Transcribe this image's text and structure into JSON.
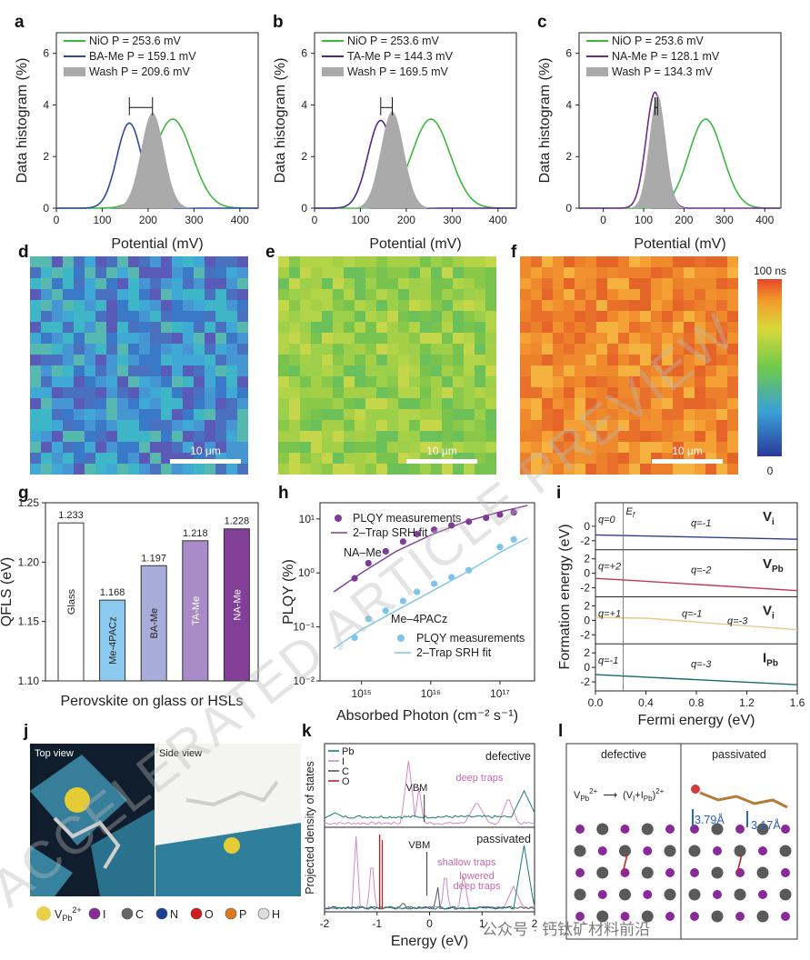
{
  "watermark": "ACCELERATED ARTICLE PREVIEW",
  "footer": "公众号 · 钙钛矿材料前沿",
  "kpfm": {
    "ylabel": "Data histogram (%)",
    "xlabel": "Potential (mV)",
    "panels": [
      {
        "label": "a",
        "series": [
          {
            "name": "NiO P = 253.6 mV",
            "type": "line",
            "color": "#3db83d",
            "mean": 253.6,
            "sigma": 42,
            "peak": 3.45
          },
          {
            "name": "BA-Me P = 159.1 mV",
            "type": "line",
            "color": "#2b4aa0",
            "mean": 159.1,
            "sigma": 27,
            "peak": 3.3
          },
          {
            "name": "Wash P = 209.6 mV",
            "type": "fill",
            "color": "#aaaaaa",
            "mean": 209.6,
            "sigma": 25,
            "peak": 3.7
          }
        ],
        "xticks": [
          "0",
          "100",
          "200",
          "300",
          "400"
        ]
      },
      {
        "label": "b",
        "series": [
          {
            "name": "NiO P = 253.6 mV",
            "type": "line",
            "color": "#3db83d",
            "mean": 253.6,
            "sigma": 42,
            "peak": 3.45
          },
          {
            "name": "TA-Me P = 144.3 mV",
            "type": "line",
            "color": "#4a2a8c",
            "mean": 144.3,
            "sigma": 28,
            "peak": 3.4
          },
          {
            "name": "Wash P = 169.5 mV",
            "type": "fill",
            "color": "#aaaaaa",
            "mean": 169.5,
            "sigma": 25,
            "peak": 3.75
          }
        ],
        "xticks": [
          "0",
          "100",
          "200",
          "300",
          "400"
        ]
      },
      {
        "label": "c",
        "series": [
          {
            "name": "NiO P = 253.6 mV",
            "type": "line",
            "color": "#3db83d",
            "mean": 253.6,
            "sigma": 42,
            "peak": 3.45
          },
          {
            "name": "NA-Me P = 128.1 mV",
            "type": "line",
            "color": "#6e2d8c",
            "mean": 128.1,
            "sigma": 22,
            "peak": 4.5
          },
          {
            "name": "Wash P = 134.3 mV",
            "type": "fill",
            "color": "#aaaaaa",
            "mean": 134.3,
            "sigma": 20,
            "peak": 4.4
          }
        ],
        "xticks": [
          "0",
          "100",
          "200",
          "300",
          "400"
        ]
      }
    ],
    "yticks": [
      "0",
      "2",
      "4",
      "6"
    ]
  },
  "maps": {
    "labels": [
      "d",
      "e",
      "f"
    ],
    "scalebar": "10 μm",
    "colorbar_top": "100 ns",
    "colorbar_bottom": "0"
  },
  "chart_data": [
    {
      "type": "bar",
      "panel": "g",
      "title": "",
      "xlabel": "Perovskite on glass or HSLs",
      "ylabel": "QFLS (eV)",
      "ylim": [
        1.1,
        1.25
      ],
      "yticks": [
        "1.10",
        "1.15",
        "1.20",
        "1.25"
      ],
      "categories": [
        "Glass",
        "Me-4PACz",
        "BA-Me",
        "TA-Me",
        "NA-Me"
      ],
      "values": [
        1.233,
        1.168,
        1.197,
        1.218,
        1.228
      ],
      "value_labels": [
        "1.233",
        "1.168",
        "1.197",
        "1.218",
        "1.228"
      ],
      "colors": [
        "#ffffff",
        "#8ccbef",
        "#a8acd8",
        "#a98bc8",
        "#833e98"
      ],
      "text_colors": [
        "#222",
        "#222",
        "#222",
        "#ffffff",
        "#ffffff"
      ]
    },
    {
      "type": "scatter",
      "panel": "h",
      "xlabel": "Absorbed Photon (cm⁻² s⁻¹)",
      "ylabel": "PLQY (%)",
      "xlim_log10": [
        14.4,
        17.5
      ],
      "ylim_log10": [
        -2,
        1.3
      ],
      "xticks": [
        "10¹⁵",
        "10¹⁶",
        "10¹⁷"
      ],
      "yticks": [
        "10⁻²",
        "10⁻¹",
        "10⁰",
        "10¹"
      ],
      "series": [
        {
          "name": "PLQY measurements",
          "group": "NA-Me",
          "color": "#7d3c98",
          "x": [
            14.9,
            15.1,
            15.35,
            15.6,
            15.8,
            16.05,
            16.3,
            16.55,
            16.8,
            17.0,
            17.2
          ],
          "y": [
            -0.1,
            0.18,
            0.4,
            0.58,
            0.72,
            0.8,
            0.88,
            0.95,
            1.02,
            1.08,
            1.12
          ]
        },
        {
          "name": "PLQY measurements",
          "group": "Me-4PACz",
          "color": "#7cc4ea",
          "x": [
            14.9,
            15.1,
            15.35,
            15.6,
            15.8,
            16.05,
            16.3,
            16.55,
            17.0,
            17.2
          ],
          "y": [
            -1.2,
            -0.85,
            -0.7,
            -0.52,
            -0.35,
            -0.2,
            -0.08,
            0.05,
            0.48,
            0.62
          ]
        }
      ],
      "legend": {
        "measure": "PLQY measurements",
        "fit": "2–Trap SRH fit",
        "label_top": "NA–Me",
        "label_bottom": "Me–4PACz"
      }
    },
    {
      "type": "line",
      "panel": "i",
      "xlabel": "Fermi energy (eV)",
      "ylabel": "Formation energy (eV)",
      "xlim": [
        0,
        1.6
      ],
      "xticks": [
        "0.0",
        "0.4",
        "0.8",
        "1.2",
        "1.6"
      ],
      "ef": "E",
      "ef_sub": "f",
      "subplots": [
        {
          "name": "V",
          "sub": "i",
          "sup": "",
          "color": "#2c3f8f",
          "line": [
            [
              0,
              -1.2
            ],
            [
              1.6,
              -1.8
            ]
          ],
          "q": [
            "q=0",
            "q=-1"
          ],
          "ticks": [
            "0",
            "-2"
          ]
        },
        {
          "name": "V",
          "sub": "Pb",
          "sup": "",
          "color": "#c7365a",
          "line": [
            [
              0,
              -0.7
            ],
            [
              0.3,
              -1.0
            ],
            [
              1.6,
              -2.4
            ]
          ],
          "q": [
            "q=+2",
            "q=-2"
          ],
          "ticks": [
            "2",
            "0",
            "-2"
          ]
        },
        {
          "name": "V",
          "sub": "i",
          "sup": "",
          "color": "#e8c88a",
          "line": [
            [
              0,
              0.4
            ],
            [
              0.4,
              0.3
            ],
            [
              1.6,
              -1.3
            ]
          ],
          "q": [
            "q=+1",
            "q=-1",
            "q=-3"
          ],
          "ticks": [
            "2",
            "0",
            "-2"
          ]
        },
        {
          "name": "I",
          "sub": "Pb",
          "sup": "",
          "color": "#1a6b6b",
          "line": [
            [
              0,
              -1.0
            ],
            [
              1.6,
              -2.4
            ]
          ],
          "q": [
            "q=-1",
            "q=-3"
          ],
          "ticks": [
            "2",
            "0",
            "-2"
          ]
        }
      ]
    },
    {
      "type": "line",
      "panel": "k",
      "xlabel": "Energy (eV)",
      "ylabel": "Projected density of states",
      "xlim": [
        -2,
        2
      ],
      "xticks": [
        "-2",
        "-1",
        "0",
        "1",
        "2"
      ],
      "legend": [
        {
          "name": "Pb",
          "color": "#1b7b7b"
        },
        {
          "name": "I",
          "color": "#d18ac0"
        },
        {
          "name": "C",
          "color": "#555555"
        },
        {
          "name": "O",
          "color": "#c0202a"
        }
      ],
      "top": {
        "title": "defective",
        "vbm": "VBM",
        "annot": "deep traps"
      },
      "bottom": {
        "title": "passivated",
        "vbm": "VBM",
        "annot1": "shallow traps",
        "annot2": "lowered deep traps"
      }
    }
  ],
  "panel_labels": {
    "g": "g",
    "h": "h",
    "i": "i",
    "j": "j",
    "k": "k",
    "l": "l"
  },
  "j": {
    "top": "Top view",
    "side": "Side view",
    "legend": [
      "V",
      "Pb",
      "2+",
      "I",
      "C",
      "N",
      "O",
      "P",
      "H"
    ],
    "legend_colors": [
      "#e8d04a",
      "#8a2a9a",
      "#666666",
      "#1c3f9a",
      "#d01c1c",
      "#e07a1a",
      "#dddddd"
    ]
  },
  "l": {
    "left": "defective",
    "right": "passivated",
    "reaction": "V",
    "r_sub": "Pb",
    "r_sup": "2+",
    "arrow": "⟶",
    "product": "(V",
    "p_mid": "+I",
    "p_sub2": "Pb",
    "p_end": ")",
    "p_sup": "2+",
    "p_sub1": "I",
    "d1": "3.79Å",
    "d2": "3.17Å"
  }
}
